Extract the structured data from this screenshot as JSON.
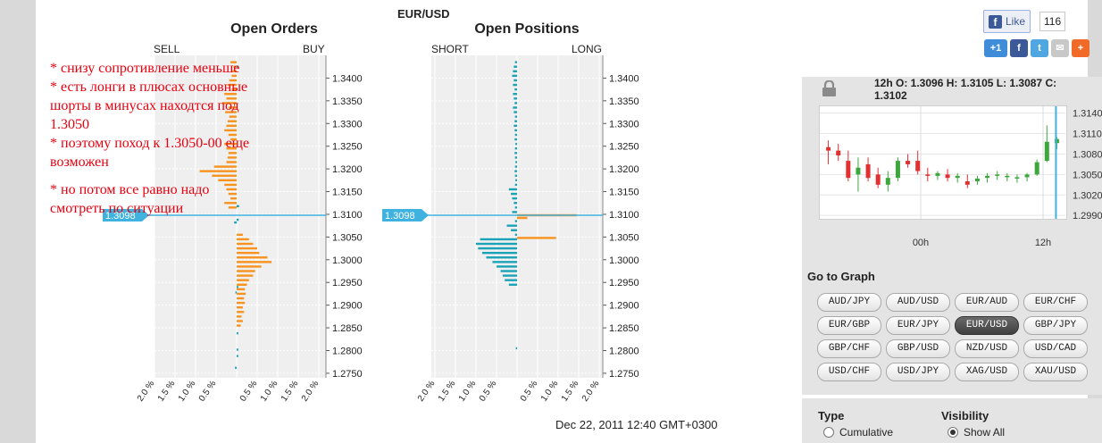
{
  "pair": "EUR/USD",
  "date_text": "Dec 22, 2011 12:40 GMT+0300",
  "current_price_label": "1.3098",
  "note_lines": [
    "* снизу сопротивление меньше",
    "* есть лонги в плюсах основные шорты в минусах находтся под 1.3050",
    "* поэтому поход к 1.3050-00 еще возможен",
    "* но потом все равно надо смотреть по ситуации"
  ],
  "social": {
    "like_label": "Like",
    "like_count": "116"
  },
  "ohlc": "12h O: 1.3096 H: 1.3105 L: 1.3087 C: 1.3102",
  "goto_title": "Go to Graph",
  "pair_buttons": [
    "AUD/JPY",
    "AUD/USD",
    "EUR/AUD",
    "EUR/CHF",
    "EUR/GBP",
    "EUR/JPY",
    "EUR/USD",
    "GBP/JPY",
    "GBP/CHF",
    "GBP/USD",
    "NZD/USD",
    "USD/CAD",
    "USD/CHF",
    "USD/JPY",
    "XAG/USD",
    "XAU/USD"
  ],
  "active_pair": "EUR/USD",
  "type_label": "Type",
  "type_option": "Cumulative",
  "visibility_label": "Visibility",
  "visibility_option": "Show All",
  "colors": {
    "orders": "#f7931e",
    "positions": "#1aa3b8",
    "price_line": "#3fb2e0",
    "up_candle": "#3ca83c",
    "down_candle": "#e23030"
  },
  "chart_data": [
    {
      "type": "bar",
      "title": "Open Orders",
      "left_label": "SELL",
      "right_label": "BUY",
      "price_ticks": [
        "1.3400",
        "1.3350",
        "1.3300",
        "1.3250",
        "1.3200",
        "1.3150",
        "1.3100",
        "1.3050",
        "1.3000",
        "1.2950",
        "1.2900",
        "1.2850",
        "1.2800",
        "1.2750"
      ],
      "x_ticks": [
        "2.0 %",
        "1.5 %",
        "1.0 %",
        "0.5 %",
        "",
        "0.5 %",
        "1.0 %",
        "1.5 %",
        "2.0 %"
      ],
      "xlim": [
        -2.0,
        2.0
      ],
      "ylim": [
        1.274,
        1.345
      ],
      "current_price": 1.3098,
      "series": [
        {
          "side": "sell",
          "color": "orange",
          "data": [
            [
              1.3435,
              0.15
            ],
            [
              1.3425,
              0.08
            ],
            [
              1.3415,
              0.1
            ],
            [
              1.3405,
              0.12
            ],
            [
              1.3395,
              0.18
            ],
            [
              1.3385,
              0.22
            ],
            [
              1.3375,
              0.12
            ],
            [
              1.3365,
              0.3
            ],
            [
              1.3355,
              0.25
            ],
            [
              1.3345,
              0.35
            ],
            [
              1.3335,
              0.2
            ],
            [
              1.3325,
              0.28
            ],
            [
              1.3315,
              0.18
            ],
            [
              1.3305,
              0.22
            ],
            [
              1.3295,
              0.25
            ],
            [
              1.3285,
              0.3
            ],
            [
              1.3275,
              0.2
            ],
            [
              1.3265,
              0.15
            ],
            [
              1.3255,
              0.3
            ],
            [
              1.3245,
              0.25
            ],
            [
              1.3235,
              0.2
            ],
            [
              1.3225,
              0.22
            ],
            [
              1.3215,
              0.25
            ],
            [
              1.3205,
              0.55
            ],
            [
              1.3195,
              0.9
            ],
            [
              1.3185,
              0.6
            ],
            [
              1.3175,
              0.45
            ],
            [
              1.3165,
              0.3
            ],
            [
              1.3155,
              0.25
            ],
            [
              1.3145,
              0.2
            ],
            [
              1.3135,
              0.15
            ],
            [
              1.3125,
              0.3
            ],
            [
              1.3115,
              0.2
            ]
          ]
        },
        {
          "side": "buy",
          "color": "orange",
          "data": [
            [
              1.3055,
              0.15
            ],
            [
              1.3045,
              0.3
            ],
            [
              1.3035,
              0.4
            ],
            [
              1.3025,
              0.5
            ],
            [
              1.3015,
              0.55
            ],
            [
              1.3005,
              0.75
            ],
            [
              1.2995,
              0.85
            ],
            [
              1.2985,
              0.6
            ],
            [
              1.2975,
              0.45
            ],
            [
              1.2965,
              0.4
            ],
            [
              1.2955,
              0.3
            ],
            [
              1.2945,
              0.25
            ],
            [
              1.2935,
              0.2
            ],
            [
              1.2925,
              0.22
            ],
            [
              1.2915,
              0.18
            ],
            [
              1.2905,
              0.2
            ],
            [
              1.2895,
              0.15
            ],
            [
              1.2885,
              0.18
            ],
            [
              1.2875,
              0.12
            ],
            [
              1.2865,
              0.15
            ],
            [
              1.2855,
              0.1
            ]
          ]
        },
        {
          "side": "buy",
          "color": "teal",
          "data": [
            [
              1.3425,
              0.05
            ],
            [
              1.3118,
              0.06
            ],
            [
              1.3088,
              0.05
            ],
            [
              1.294,
              0.04
            ],
            [
              1.2838,
              0.04
            ],
            [
              1.2802,
              0.04
            ],
            [
              1.2788,
              0.04
            ]
          ]
        },
        {
          "side": "sell",
          "color": "teal",
          "data": [
            [
              1.3082,
              0.06
            ],
            [
              1.2928,
              0.03
            ],
            [
              1.2762,
              0.04
            ]
          ]
        }
      ]
    },
    {
      "type": "bar",
      "title": "Open Positions",
      "left_label": "SHORT",
      "right_label": "LONG",
      "price_ticks": [
        "1.3400",
        "1.3350",
        "1.3300",
        "1.3250",
        "1.3200",
        "1.3150",
        "1.3100",
        "1.3050",
        "1.3000",
        "1.2950",
        "1.2900",
        "1.2850",
        "1.2800",
        "1.2750"
      ],
      "x_ticks": [
        "2.0 %",
        "1.5 %",
        "1.0 %",
        "0.5 %",
        "",
        "0.5 %",
        "1.0 %",
        "1.5 %",
        "2.0 %"
      ],
      "xlim": [
        -2.0,
        2.0
      ],
      "ylim": [
        1.274,
        1.345
      ],
      "current_price": 1.3098,
      "series": [
        {
          "side": "short",
          "color": "teal",
          "data": [
            [
              1.3435,
              0.05
            ],
            [
              1.3425,
              0.08
            ],
            [
              1.3415,
              0.1
            ],
            [
              1.3405,
              0.12
            ],
            [
              1.3395,
              0.08
            ],
            [
              1.3385,
              0.1
            ],
            [
              1.3375,
              0.06
            ],
            [
              1.3365,
              0.1
            ],
            [
              1.3355,
              0.08
            ],
            [
              1.3345,
              0.06
            ],
            [
              1.3335,
              0.1
            ],
            [
              1.3325,
              0.08
            ],
            [
              1.3315,
              0.05
            ],
            [
              1.3305,
              0.06
            ],
            [
              1.3295,
              0.08
            ],
            [
              1.3285,
              0.06
            ],
            [
              1.3275,
              0.05
            ],
            [
              1.3265,
              0.06
            ],
            [
              1.3255,
              0.04
            ],
            [
              1.3245,
              0.05
            ],
            [
              1.3235,
              0.06
            ],
            [
              1.3225,
              0.05
            ],
            [
              1.3215,
              0.04
            ],
            [
              1.3205,
              0.05
            ],
            [
              1.3195,
              0.06
            ],
            [
              1.3185,
              0.05
            ],
            [
              1.3175,
              0.04
            ],
            [
              1.3165,
              0.05
            ],
            [
              1.3155,
              0.2
            ],
            [
              1.3145,
              0.15
            ],
            [
              1.3135,
              0.12
            ],
            [
              1.3125,
              0.08
            ],
            [
              1.3115,
              0.05
            ],
            [
              1.3105,
              0.12
            ],
            [
              1.3085,
              0.05
            ],
            [
              1.3075,
              0.25
            ],
            [
              1.3065,
              0.15
            ],
            [
              1.3055,
              0.05
            ],
            [
              1.3045,
              0.9
            ],
            [
              1.3035,
              1.0
            ],
            [
              1.3025,
              0.95
            ],
            [
              1.3015,
              0.85
            ],
            [
              1.3005,
              0.75
            ],
            [
              1.2995,
              0.6
            ],
            [
              1.2985,
              0.5
            ],
            [
              1.2975,
              0.4
            ],
            [
              1.2965,
              0.35
            ],
            [
              1.2955,
              0.3
            ],
            [
              1.2945,
              0.2
            ]
          ]
        },
        {
          "side": "long",
          "color": "orange",
          "data": [
            [
              1.3098,
              1.45
            ],
            [
              1.3092,
              0.25
            ],
            [
              1.3048,
              0.95
            ]
          ]
        },
        {
          "side": "short",
          "color": "teal",
          "data": [
            [
              1.2805,
              0.03
            ]
          ]
        }
      ]
    },
    {
      "type": "candlestick",
      "title": "",
      "y_ticks": [
        "1.3140",
        "1.3110",
        "1.3080",
        "1.3050",
        "1.3020",
        "1.2990"
      ],
      "x_ticks": [
        "00h",
        "12h"
      ],
      "ylim": [
        1.2985,
        1.315
      ],
      "candles": [
        {
          "o": 1.309,
          "h": 1.31,
          "l": 1.3065,
          "c": 1.3085
        },
        {
          "o": 1.3085,
          "h": 1.3095,
          "l": 1.307,
          "c": 1.3078
        },
        {
          "o": 1.307,
          "h": 1.3085,
          "l": 1.304,
          "c": 1.3045
        },
        {
          "o": 1.305,
          "h": 1.3075,
          "l": 1.3025,
          "c": 1.306
        },
        {
          "o": 1.3065,
          "h": 1.3075,
          "l": 1.304,
          "c": 1.3045
        },
        {
          "o": 1.305,
          "h": 1.306,
          "l": 1.303,
          "c": 1.3035
        },
        {
          "o": 1.3035,
          "h": 1.3055,
          "l": 1.3025,
          "c": 1.3045
        },
        {
          "o": 1.3045,
          "h": 1.3075,
          "l": 1.304,
          "c": 1.307
        },
        {
          "o": 1.307,
          "h": 1.308,
          "l": 1.306,
          "c": 1.3065
        },
        {
          "o": 1.307,
          "h": 1.3085,
          "l": 1.305,
          "c": 1.3055
        },
        {
          "o": 1.305,
          "h": 1.306,
          "l": 1.304,
          "c": 1.3048
        },
        {
          "o": 1.3048,
          "h": 1.3055,
          "l": 1.3042,
          "c": 1.3052
        },
        {
          "o": 1.305,
          "h": 1.3058,
          "l": 1.304,
          "c": 1.3045
        },
        {
          "o": 1.3045,
          "h": 1.3052,
          "l": 1.3038,
          "c": 1.3048
        },
        {
          "o": 1.304,
          "h": 1.305,
          "l": 1.303,
          "c": 1.3035
        },
        {
          "o": 1.304,
          "h": 1.3048,
          "l": 1.3035,
          "c": 1.3044
        },
        {
          "o": 1.3045,
          "h": 1.3052,
          "l": 1.3038,
          "c": 1.3048
        },
        {
          "o": 1.3048,
          "h": 1.3055,
          "l": 1.3042,
          "c": 1.305
        },
        {
          "o": 1.3046,
          "h": 1.3052,
          "l": 1.304,
          "c": 1.3048
        },
        {
          "o": 1.3044,
          "h": 1.305,
          "l": 1.3038,
          "c": 1.3046
        },
        {
          "o": 1.3046,
          "h": 1.3052,
          "l": 1.304,
          "c": 1.305
        },
        {
          "o": 1.305,
          "h": 1.3072,
          "l": 1.3048,
          "c": 1.3068
        },
        {
          "o": 1.307,
          "h": 1.3122,
          "l": 1.3068,
          "c": 1.3098
        },
        {
          "o": 1.3096,
          "h": 1.3105,
          "l": 1.3087,
          "c": 1.3102
        }
      ]
    }
  ]
}
